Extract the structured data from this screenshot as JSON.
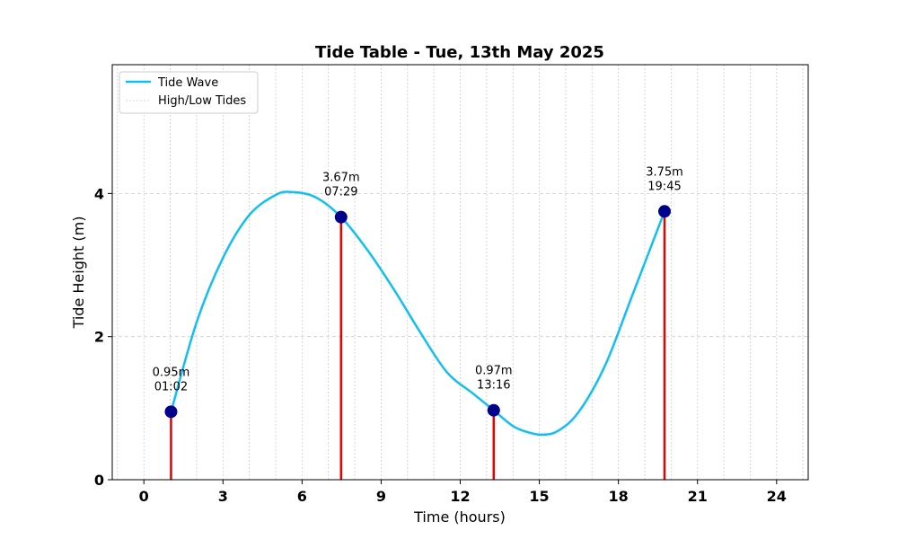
{
  "chart_data": {
    "type": "line",
    "title": "Tide Table - Tue, 13th May 2025",
    "xlabel": "Time (hours)",
    "ylabel": "Tide Height (m)",
    "xlim": [
      -1.2,
      25.2
    ],
    "ylim": [
      0,
      5.8
    ],
    "xticks": [
      0,
      3,
      6,
      9,
      12,
      15,
      18,
      21,
      24
    ],
    "xtick_labels": [
      "0",
      "3",
      "6",
      "9",
      "12",
      "15",
      "18",
      "21",
      "24"
    ],
    "yticks": [
      0,
      2,
      4
    ],
    "ytick_labels": [
      "0",
      "2",
      "4"
    ],
    "minor_x_grid_step": 1,
    "grid": true,
    "legend_position": "top-left",
    "legend": [
      "Tide Wave",
      "High/Low Tides"
    ],
    "colors": {
      "wave": "#13bff2",
      "stems": "#e60000",
      "markers": "#00008b",
      "grid": "#cccccc"
    },
    "series": [
      {
        "name": "Tide Wave",
        "x": [
          1.03,
          2.0,
          3.0,
          4.0,
          5.0,
          5.6,
          6.5,
          7.48,
          8.5,
          9.5,
          10.5,
          11.5,
          12.5,
          13.27,
          14.0,
          14.6,
          15.1,
          15.7,
          16.5,
          17.5,
          18.5,
          19.75
        ],
        "y": [
          0.95,
          2.2,
          3.1,
          3.7,
          3.98,
          4.02,
          3.95,
          3.67,
          3.2,
          2.65,
          2.05,
          1.5,
          1.2,
          0.97,
          0.75,
          0.66,
          0.63,
          0.68,
          0.95,
          1.6,
          2.55,
          3.75
        ]
      }
    ],
    "tides": [
      {
        "time": 1.03,
        "height": 0.95,
        "label_height": "0.95m",
        "label_time": "01:02"
      },
      {
        "time": 7.48,
        "height": 3.67,
        "label_height": "3.67m",
        "label_time": "07:29"
      },
      {
        "time": 13.27,
        "height": 0.97,
        "label_height": "0.97m",
        "label_time": "13:16"
      },
      {
        "time": 19.75,
        "height": 3.75,
        "label_height": "3.75m",
        "label_time": "19:45"
      }
    ]
  }
}
